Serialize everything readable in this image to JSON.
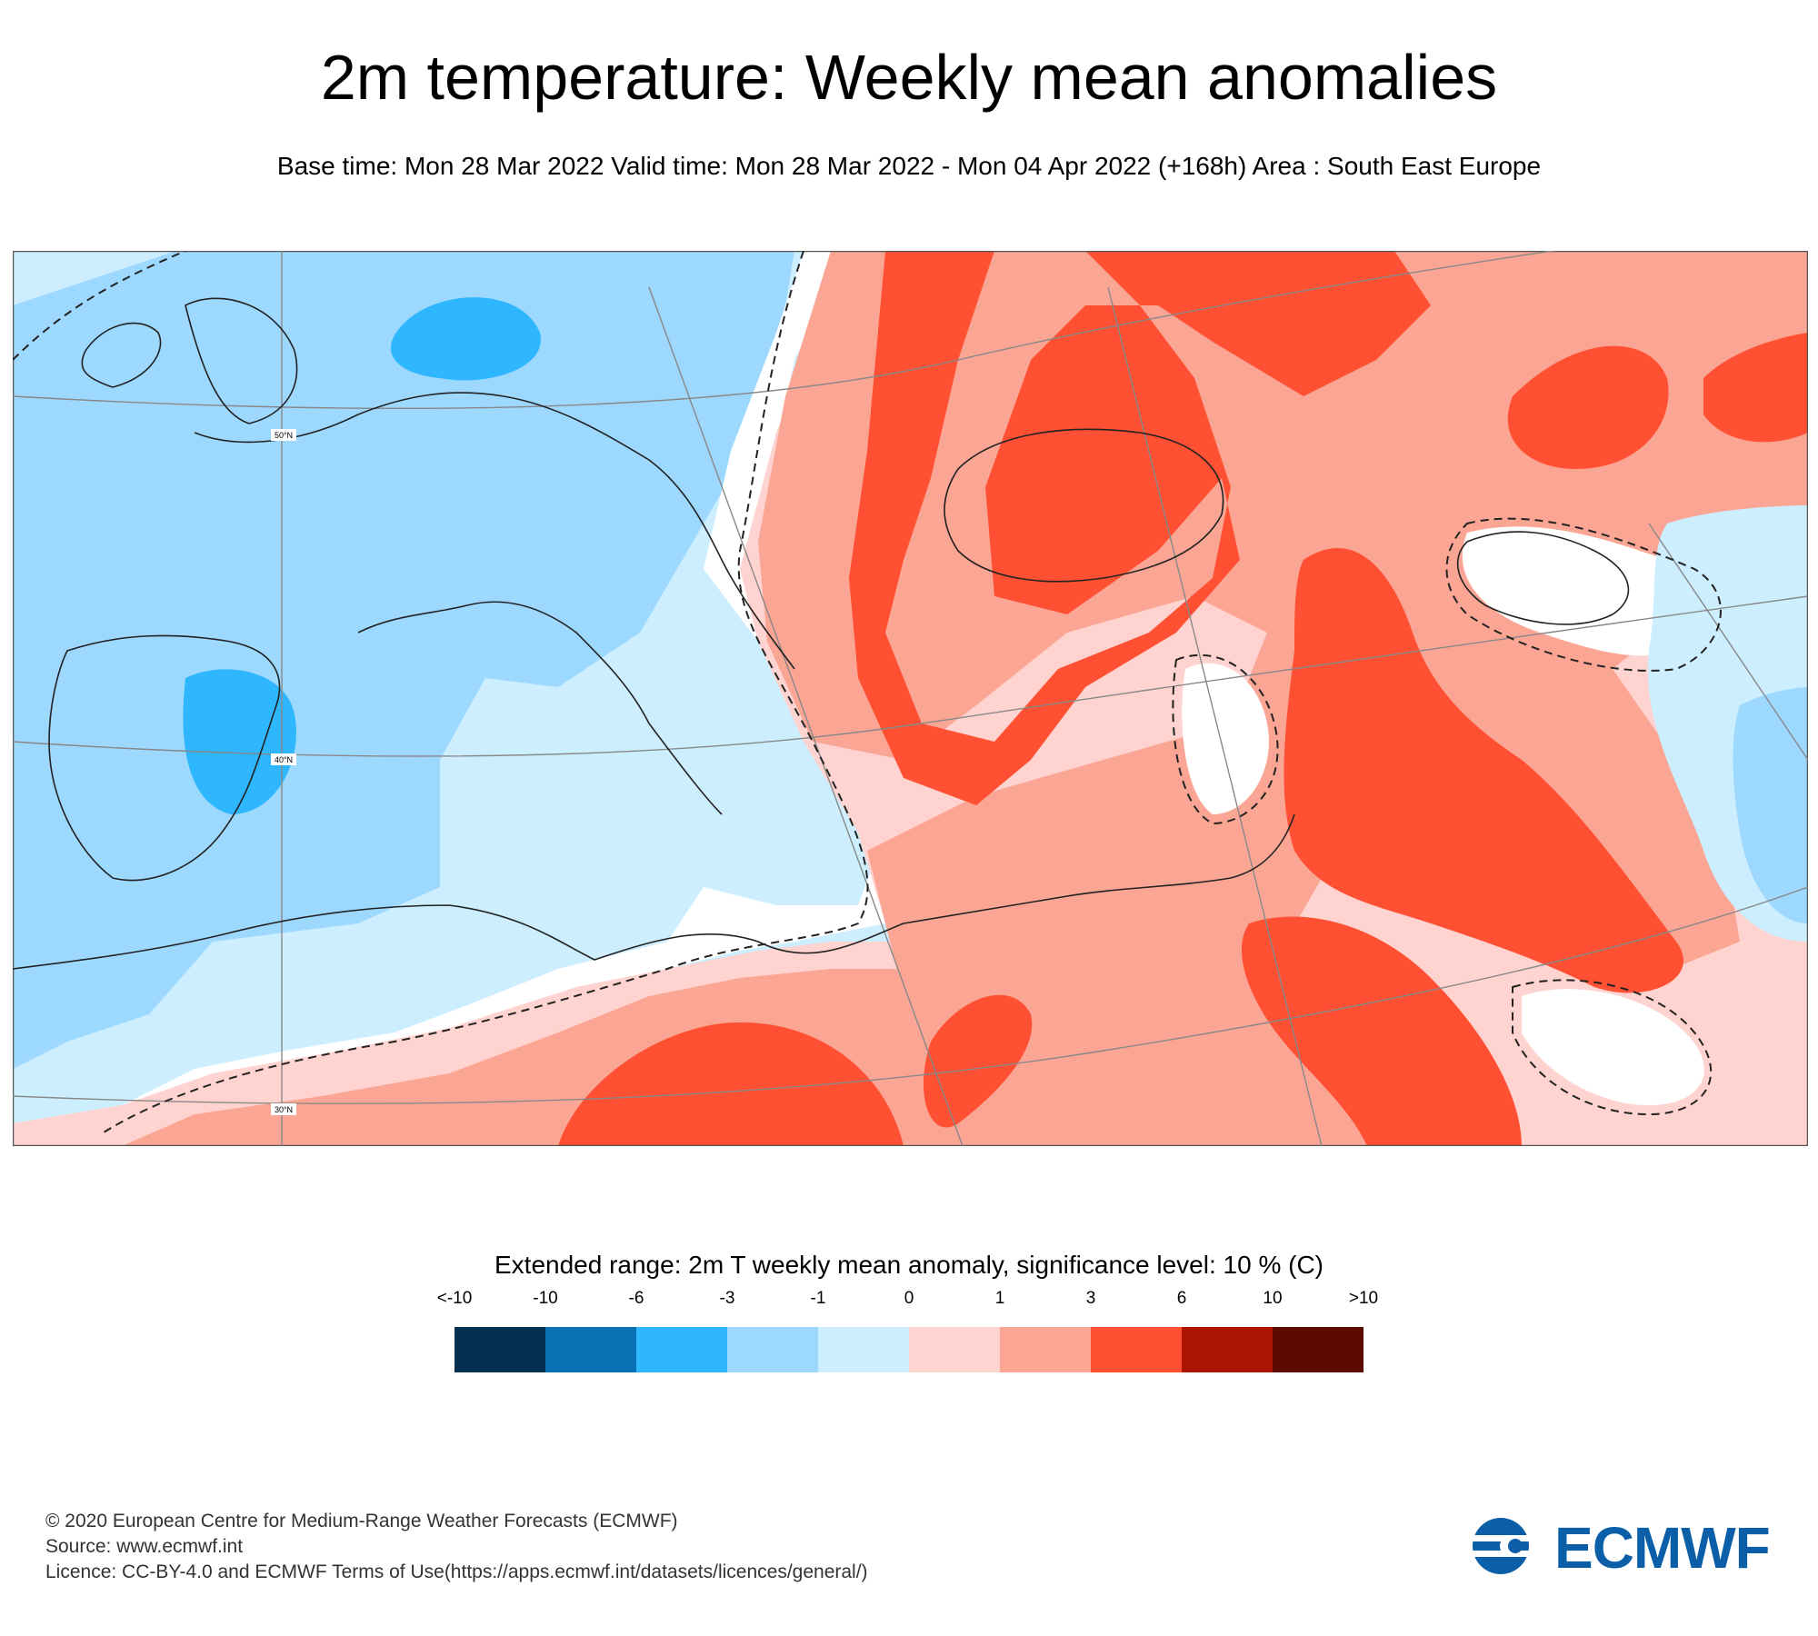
{
  "header": {
    "title": "2m temperature: Weekly mean anomalies",
    "subtitle": "Base time: Mon 28 Mar 2022 Valid time: Mon 28 Mar 2022 - Mon 04 Apr 2022 (+168h) Area : South East Europe"
  },
  "map": {
    "lat_labels": [
      "50°N",
      "40°N",
      "30°N"
    ],
    "colors": {
      "lt_m10": "#05304f",
      "m10_m6": "#0a72b4",
      "m6_m3": "#2eb6ff",
      "m3_m1": "#9dd9ff",
      "m1_0": "#cceeff",
      "0_1": "#ffd3cf",
      "1_3": "#fba694",
      "3_6": "#ff5033",
      "6_10": "#ab1400",
      "gt_10": "#5c0b00",
      "insignificant": "#ffffff",
      "coastline": "#222222",
      "grid": "#888888"
    }
  },
  "legend": {
    "title": "Extended range: 2m T weekly mean anomaly, significance level: 10 % (C)",
    "ticks": [
      "<-10",
      "-10",
      "-6",
      "-3",
      "-1",
      "0",
      "1",
      "3",
      "6",
      "10",
      ">10"
    ],
    "swatch_colors": [
      "#05304f",
      "#0a72b4",
      "#2eb6ff",
      "#9dd9ff",
      "#cceeff",
      "#ffd3cf",
      "#fba694",
      "#ff5033",
      "#ab1400",
      "#5c0b00"
    ]
  },
  "footer": {
    "copyright": "© 2020 European Centre for Medium-Range Weather Forecasts (ECMWF)",
    "source": "Source: www.ecmwf.int",
    "licence": "Licence: CC-BY-4.0 and ECMWF Terms of Use(https://apps.ecmwf.int/datasets/licences/general/)"
  },
  "logo": {
    "text": "ECMWF",
    "color": "#0a5fa8"
  }
}
